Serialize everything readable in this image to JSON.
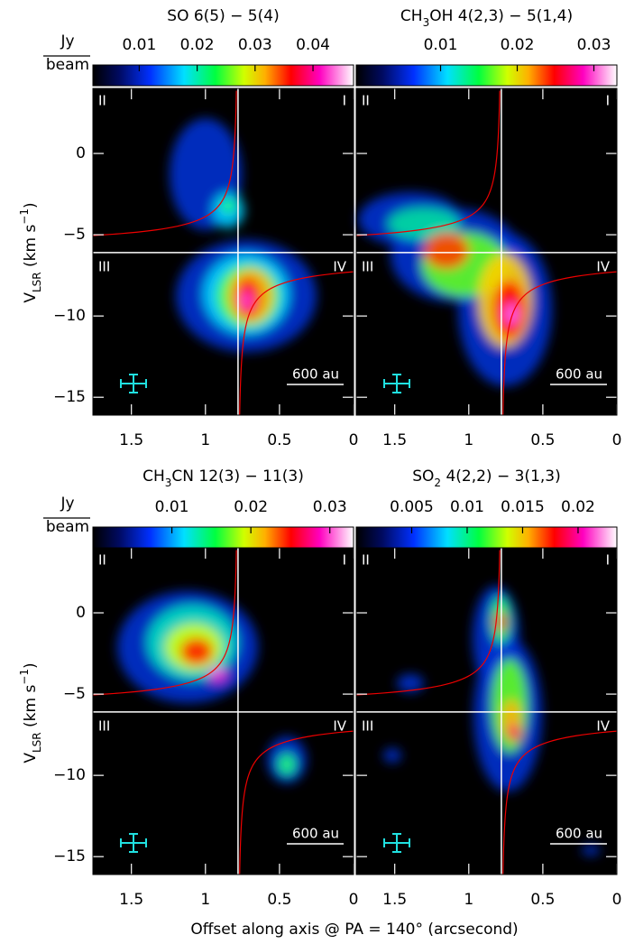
{
  "figure": {
    "x_label": "Offset along axis @ PA = 140° (arcsecond)",
    "y_label": [
      "V",
      "LSR",
      " (km s",
      "−1",
      ")"
    ],
    "unit": [
      "Jy",
      "beam"
    ]
  },
  "chart_data": [
    {
      "type": "image",
      "title": [
        "SO  6(5) − 5(4)"
      ],
      "clim": [
        0.002,
        0.047
      ],
      "cticks": [
        0.01,
        0.02,
        0.03,
        0.04
      ],
      "xlim": [
        1.76,
        0
      ],
      "xticks": [
        1.5,
        1,
        0.5,
        0
      ],
      "ylim": [
        -16.1,
        4
      ],
      "yticks": [
        0,
        {
          "value": -5,
          "label": "−5"
        },
        {
          "value": -10,
          "label": "−10"
        },
        {
          "value": -15,
          "label": "−15"
        }
      ],
      "reference_lines": {
        "x": 0.78,
        "y": -6.1
      },
      "quadrants": [
        "I",
        "II",
        "III",
        "IV"
      ],
      "scale_bar": "600 au"
    },
    {
      "type": "image",
      "title": [
        "CH",
        "3",
        "OH  4(2,3) − 5(1,4)"
      ],
      "clim": [
        -0.001,
        0.033
      ],
      "cticks": [
        0.01,
        0.02,
        0.03
      ],
      "xlim": [
        1.76,
        0
      ],
      "xticks": [
        1.5,
        1,
        0.5,
        0
      ],
      "ylim": [
        -16.1,
        4
      ],
      "yticks": [
        0,
        -5,
        -10,
        -15
      ],
      "reference_lines": {
        "x": 0.78,
        "y": -6.1
      },
      "quadrants": [
        "I",
        "II",
        "III",
        "IV"
      ],
      "scale_bar": "600 au"
    },
    {
      "type": "image",
      "title": [
        "CH",
        "3",
        "CN  12(3) − 11(3)"
      ],
      "clim": [
        0,
        0.033
      ],
      "cticks": [
        0.01,
        0.02,
        0.03
      ],
      "xlim": [
        1.76,
        0
      ],
      "xticks": [
        1.5,
        1,
        0.5,
        0
      ],
      "ylim": [
        -16.1,
        4
      ],
      "yticks": [
        0,
        {
          "value": -5,
          "label": "−5"
        },
        {
          "value": -10,
          "label": "−10"
        },
        {
          "value": -15,
          "label": "−15"
        }
      ],
      "reference_lines": {
        "x": 0.78,
        "y": -6.1
      },
      "quadrants": [
        "I",
        "II",
        "III",
        "IV"
      ],
      "scale_bar": "600 au"
    },
    {
      "type": "image",
      "title": [
        "SO",
        "2",
        "  4(2,2) − 3(1,3)"
      ],
      "clim": [
        0,
        0.0235
      ],
      "cticks": [
        0.005,
        0.01,
        0.015,
        0.02
      ],
      "xlim": [
        1.76,
        0
      ],
      "xticks": [
        1.5,
        1,
        0.5,
        0
      ],
      "ylim": [
        -16.1,
        4
      ],
      "yticks": [
        0,
        -5,
        -10,
        -15
      ],
      "reference_lines": {
        "x": 0.78,
        "y": -6.1
      },
      "quadrants": [
        "I",
        "II",
        "III",
        "IV"
      ],
      "scale_bar": "600 au"
    }
  ]
}
